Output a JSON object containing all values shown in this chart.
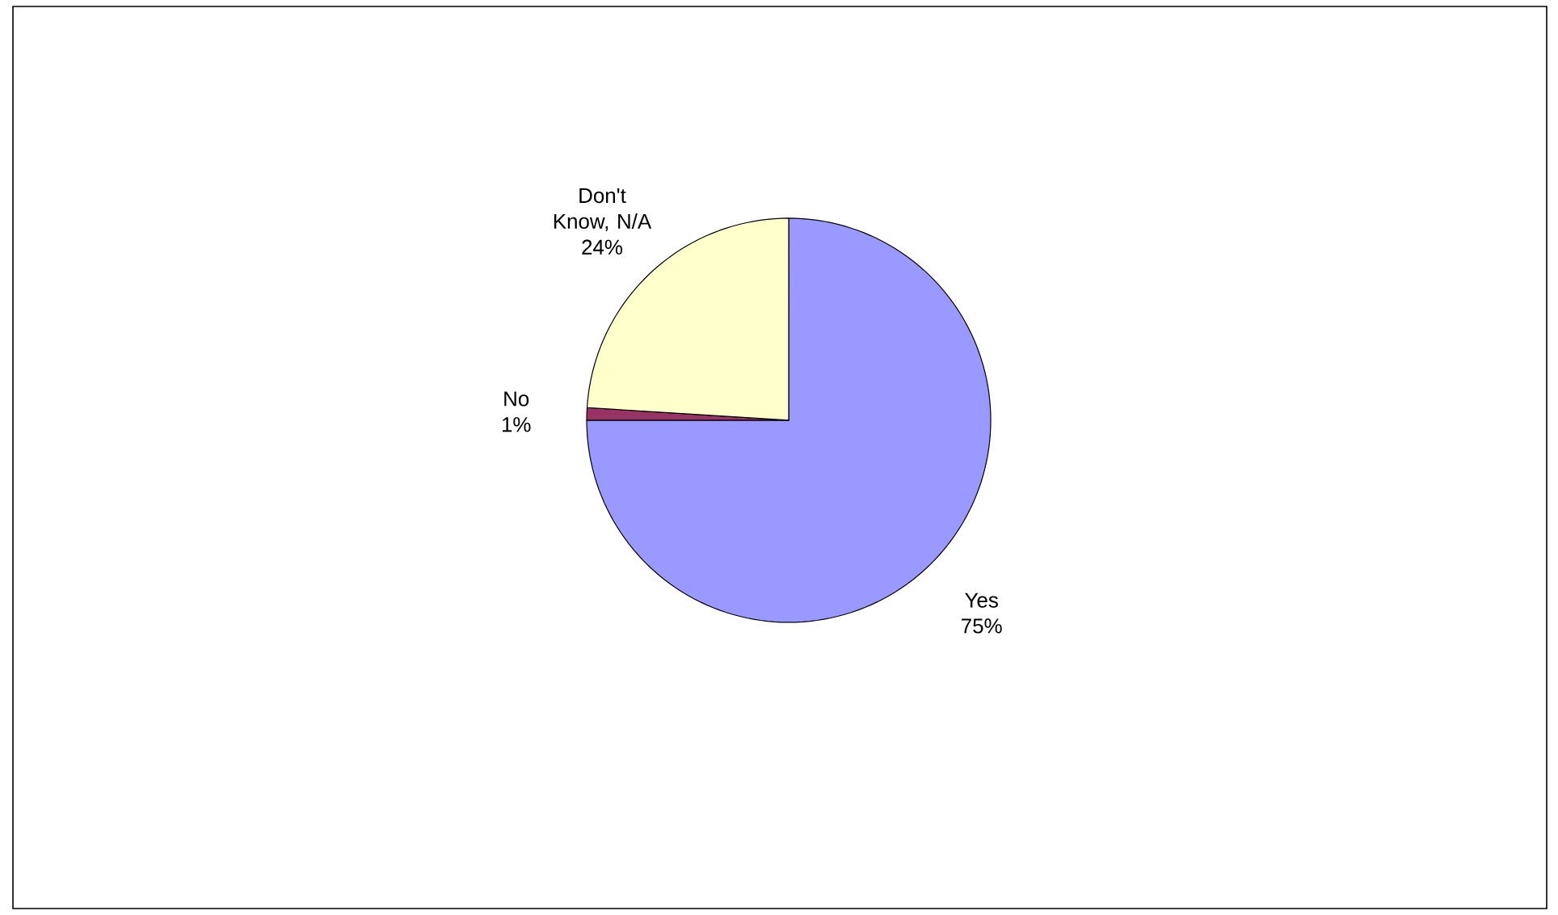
{
  "chart_data": {
    "type": "pie",
    "categories": [
      "Yes",
      "No",
      "Don't Know, N/A"
    ],
    "values": [
      75,
      1,
      24
    ],
    "colors": [
      "#9999ff",
      "#993366",
      "#ffffcc"
    ],
    "value_labels": [
      "75%",
      "1%",
      "24%"
    ]
  }
}
